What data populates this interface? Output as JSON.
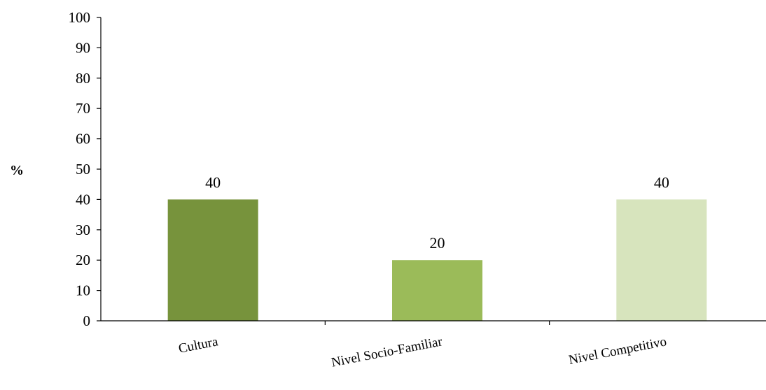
{
  "chart_data": {
    "type": "bar",
    "title": "",
    "xlabel": "",
    "ylabel": "%",
    "ylim": [
      0,
      100
    ],
    "yticks": [
      0,
      10,
      20,
      30,
      40,
      50,
      60,
      70,
      80,
      90,
      100
    ],
    "categories": [
      "Cultura",
      "Nivel Socio-Familiar",
      "Nivel Competitivo"
    ],
    "values": [
      40,
      20,
      40
    ],
    "data_labels": [
      "40",
      "20",
      "40"
    ],
    "bar_colors": [
      "#77933C",
      "#9BBB59",
      "#D7E4BD"
    ],
    "grid": false,
    "legend": "none"
  }
}
